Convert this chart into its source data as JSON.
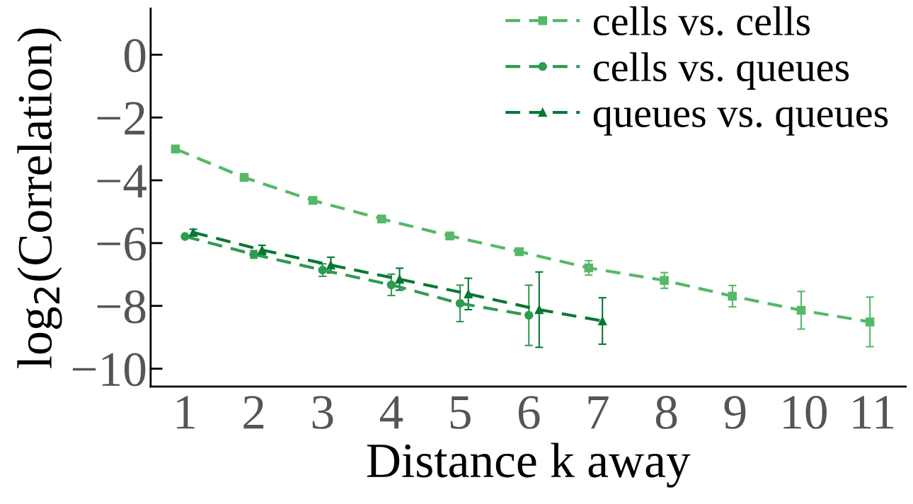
{
  "chart_data": {
    "type": "line",
    "xlabel": "Distance k away",
    "ylabel": "log$_{2}$(Correlation)",
    "xlim": [
      0.5,
      11.48
    ],
    "xticks": [
      1,
      2,
      3,
      4,
      5,
      6,
      7,
      8,
      9,
      10,
      11
    ],
    "ylim": [
      -10.57,
      1.47
    ],
    "yticks": [
      {
        "value": 0,
        "label": "0"
      },
      {
        "value": -2,
        "label": "−2"
      },
      {
        "value": -4,
        "label": "−4"
      },
      {
        "value": -6,
        "label": "−6"
      },
      {
        "value": -8,
        "label": "−8"
      },
      {
        "value": -10,
        "label": "−10"
      }
    ],
    "grid": false,
    "legend": "top right",
    "line_style": "dashed",
    "series": [
      {
        "name": "cells vs. cells",
        "color": "#55b868",
        "marker": "square",
        "x": [
          0.86,
          1.86,
          2.86,
          3.86,
          4.85,
          5.86,
          6.87,
          7.97,
          8.96,
          9.96,
          10.96
        ],
        "values": [
          -3.0,
          -3.91,
          -4.64,
          -5.23,
          -5.77,
          -6.27,
          -6.79,
          -7.19,
          -7.69,
          -8.14,
          -8.51
        ],
        "errors": [
          null,
          null,
          null,
          null,
          null,
          0.1,
          0.23,
          0.25,
          0.34,
          0.6,
          0.79
        ]
      },
      {
        "name": "cells vs. queues",
        "color": "#2e9c4f",
        "marker": "circle",
        "x": [
          1,
          2,
          3,
          4,
          5,
          6
        ],
        "values": [
          -5.79,
          -6.36,
          -6.86,
          -7.33,
          -7.92,
          -8.3
        ],
        "errors": [
          null,
          0.12,
          0.2,
          0.34,
          0.58,
          0.96
        ]
      },
      {
        "name": "queues vs. queues",
        "color": "#077733",
        "marker": "triangle",
        "x": [
          1.12,
          2.12,
          3.12,
          4.12,
          5.12,
          6.15,
          7.07
        ],
        "values": [
          -5.66,
          -6.22,
          -6.7,
          -7.15,
          -7.62,
          -8.12,
          -8.48
        ],
        "errors": [
          0.1,
          0.15,
          0.25,
          0.35,
          0.5,
          1.2,
          0.74
        ]
      }
    ]
  }
}
